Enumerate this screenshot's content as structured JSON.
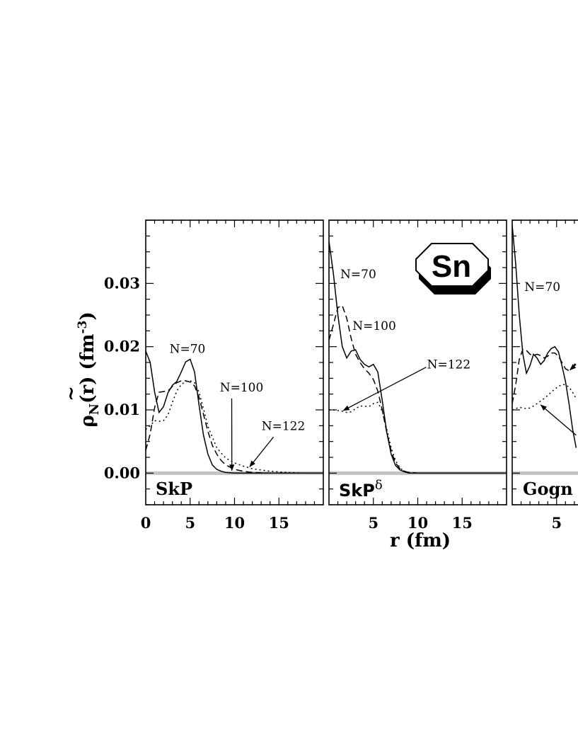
{
  "chart_data": {
    "type": "line",
    "ylabel": {
      "rho": "ρ",
      "sub": "N",
      "rest": "(r) (fm",
      "exp": "-3",
      "close": ")"
    },
    "xlabel": "r (fm)",
    "ylim": [
      -0.005,
      0.04
    ],
    "yticks": [
      {
        "value": 0.0,
        "label": "0.00"
      },
      {
        "value": 0.01,
        "label": "0.01"
      },
      {
        "value": 0.02,
        "label": "0.02"
      },
      {
        "value": 0.03,
        "label": "0.03"
      }
    ],
    "badge": "Sn",
    "panels": [
      {
        "label": "SkP",
        "label_sup": "",
        "xlim": [
          0,
          20
        ],
        "xticks": [
          {
            "value": 0,
            "label": "0"
          },
          {
            "value": 5,
            "label": "5"
          },
          {
            "value": 10,
            "label": "10"
          },
          {
            "value": 15,
            "label": "15"
          }
        ],
        "series": [
          {
            "name": "N=70",
            "style": "solid",
            "x": [
              0,
              0.5,
              1,
              1.5,
              2,
              2.5,
              3,
              3.5,
              4,
              4.5,
              5,
              5.5,
              6,
              6.5,
              7,
              7.5,
              8,
              8.5,
              9,
              10,
              11,
              12,
              14,
              16,
              20
            ],
            "y": [
              0.0193,
              0.0175,
              0.0128,
              0.0096,
              0.0105,
              0.0127,
              0.0139,
              0.0145,
              0.016,
              0.0176,
              0.018,
              0.016,
              0.0108,
              0.006,
              0.003,
              0.0013,
              0.0006,
              0.0003,
              0.0001,
              0.0,
              0.0,
              0.0,
              0.0,
              0.0,
              0.0
            ]
          },
          {
            "name": "N=100",
            "style": "dashed",
            "x": [
              0,
              0.5,
              1,
              1.5,
              2,
              2.5,
              3,
              3.5,
              4,
              4.5,
              5,
              5.5,
              6,
              6.5,
              7,
              7.5,
              8,
              8.5,
              9,
              10,
              11,
              12,
              14,
              16,
              20
            ],
            "y": [
              0.0036,
              0.0062,
              0.0104,
              0.0128,
              0.0129,
              0.013,
              0.0137,
              0.0143,
              0.0146,
              0.0146,
              0.0144,
              0.0138,
              0.012,
              0.0093,
              0.0066,
              0.0044,
              0.003,
              0.002,
              0.0013,
              0.0006,
              0.0003,
              0.0001,
              0.0,
              0.0,
              0.0
            ]
          },
          {
            "name": "N=122",
            "style": "dotted",
            "x": [
              0,
              0.5,
              1,
              1.5,
              2,
              2.5,
              3,
              3.5,
              4,
              4.5,
              5,
              5.5,
              6,
              6.5,
              7,
              8,
              9,
              10,
              11,
              12,
              13,
              14,
              16,
              18,
              20
            ],
            "y": [
              0.0069,
              0.0075,
              0.0083,
              0.0082,
              0.0083,
              0.0092,
              0.0112,
              0.013,
              0.014,
              0.0145,
              0.0146,
              0.0143,
              0.0128,
              0.0102,
              0.0074,
              0.004,
              0.0024,
              0.0016,
              0.0011,
              0.0007,
              0.0005,
              0.0003,
              0.0001,
              0.0,
              0.0
            ]
          }
        ],
        "annotations": [
          {
            "text": "N=70",
            "at": [
              4.7,
              0.0197
            ]
          },
          {
            "text": "N=100",
            "at": [
              10.8,
              0.0136
            ],
            "arrow_to": [
              9.7,
              0.0004
            ]
          },
          {
            "text": "N=122",
            "at": [
              15.5,
              0.0075
            ],
            "arrow_to": [
              11.7,
              0.001
            ]
          }
        ]
      },
      {
        "label": "SkP",
        "label_sup": "δ",
        "xlim": [
          0,
          20
        ],
        "xticks": [
          {
            "value": 5,
            "label": "5"
          },
          {
            "value": 10,
            "label": "10"
          },
          {
            "value": 15,
            "label": "15"
          }
        ],
        "series": [
          {
            "name": "N=70",
            "style": "solid",
            "x": [
              0,
              0.5,
              1,
              1.5,
              2,
              2.5,
              3,
              3.5,
              4,
              4.5,
              5,
              5.5,
              6,
              6.5,
              7,
              7.5,
              8,
              8.5,
              9,
              10,
              12,
              14,
              16,
              20
            ],
            "y": [
              0.0367,
              0.0315,
              0.025,
              0.02,
              0.0182,
              0.0193,
              0.0195,
              0.018,
              0.0172,
              0.0168,
              0.0172,
              0.016,
              0.0115,
              0.0065,
              0.003,
              0.0012,
              0.0005,
              0.0002,
              0.0,
              0.0,
              0.0,
              0.0,
              0.0,
              0.0
            ]
          },
          {
            "name": "N=100",
            "style": "dashed",
            "x": [
              0,
              0.5,
              1,
              1.5,
              2,
              2.5,
              3,
              3.5,
              4,
              4.5,
              5,
              5.5,
              6,
              6.5,
              7,
              7.5,
              8,
              8.5,
              9,
              10,
              12,
              14,
              16,
              20
            ],
            "y": [
              0.021,
              0.0235,
              0.0262,
              0.0265,
              0.0245,
              0.0213,
              0.0188,
              0.0175,
              0.0165,
              0.0158,
              0.0148,
              0.013,
              0.01,
              0.0065,
              0.0035,
              0.0016,
              0.0007,
              0.0003,
              0.0001,
              0.0,
              0.0,
              0.0,
              0.0,
              0.0
            ]
          },
          {
            "name": "N=122",
            "style": "dotted",
            "x": [
              0,
              0.5,
              1,
              1.5,
              2,
              2.5,
              3,
              3.5,
              4,
              4.5,
              5,
              5.5,
              6,
              6.5,
              7,
              7.5,
              8,
              8.5,
              9,
              10,
              12,
              14,
              16,
              20
            ],
            "y": [
              0.01,
              0.01,
              0.0099,
              0.0098,
              0.0096,
              0.0097,
              0.0102,
              0.0106,
              0.0106,
              0.0105,
              0.011,
              0.0112,
              0.0098,
              0.007,
              0.004,
              0.002,
              0.0008,
              0.0003,
              0.0001,
              0.0,
              0.0,
              0.0,
              0.0,
              0.0
            ]
          }
        ],
        "annotations": [
          {
            "text": "N=70",
            "at": [
              3.3,
              0.0315
            ]
          },
          {
            "text": "N=100",
            "at": [
              5.1,
              0.0233
            ]
          },
          {
            "text": "N=122",
            "at": [
              13.5,
              0.0172
            ],
            "arrow_to": [
              1.6,
              0.0099
            ]
          }
        ]
      },
      {
        "label": "Gogn",
        "label_sup": "",
        "xlim": [
          0,
          20
        ],
        "xticks": [
          {
            "value": 5,
            "label": "5"
          }
        ],
        "series": [
          {
            "name": "N=70",
            "style": "solid",
            "x": [
              0,
              0.4,
              0.8,
              1.2,
              1.6,
              2.0,
              2.4,
              2.8,
              3.2,
              3.6,
              4.0,
              4.4,
              4.8,
              5.2,
              5.6,
              6.0,
              6.4,
              6.8,
              7.2
            ],
            "y": [
              0.0392,
              0.033,
              0.025,
              0.0188,
              0.0158,
              0.017,
              0.0188,
              0.0182,
              0.0172,
              0.0178,
              0.019,
              0.0197,
              0.02,
              0.0192,
              0.017,
              0.0145,
              0.011,
              0.007,
              0.004
            ]
          },
          {
            "name": "N=100",
            "style": "dashed",
            "x": [
              0,
              0.4,
              0.8,
              1.2,
              1.6,
              2.0,
              2.4,
              2.8,
              3.2,
              3.6,
              4.0,
              4.4,
              4.8,
              5.2,
              5.6,
              6.0,
              6.4,
              6.8,
              7.2
            ],
            "y": [
              0.011,
              0.014,
              0.018,
              0.0196,
              0.0194,
              0.0188,
              0.0186,
              0.0188,
              0.0186,
              0.0182,
              0.0185,
              0.019,
              0.019,
              0.0185,
              0.0175,
              0.0165,
              0.0162,
              0.0168,
              0.0175
            ]
          },
          {
            "name": "N=122",
            "style": "dotted",
            "x": [
              0,
              0.4,
              0.8,
              1.2,
              1.6,
              2.0,
              2.4,
              2.8,
              3.2,
              3.6,
              4.0,
              4.4,
              4.8,
              5.2,
              5.6,
              6.0,
              6.4,
              6.8,
              7.2
            ],
            "y": [
              0.01,
              0.0102,
              0.0104,
              0.0103,
              0.0102,
              0.0103,
              0.0106,
              0.011,
              0.0114,
              0.0118,
              0.0123,
              0.0128,
              0.0133,
              0.0137,
              0.014,
              0.014,
              0.0136,
              0.0128,
              0.0118
            ]
          }
        ],
        "annotations": [
          {
            "text": "N=70",
            "at": [
              3.4,
              0.0295
            ]
          },
          {
            "arrow_from": [
              7.2,
              0.006
            ],
            "arrow_to": [
              3.2,
              0.0108
            ]
          },
          {
            "arrow_from": [
              7.2,
              0.0172
            ],
            "arrow_to": [
              6.5,
              0.0163
            ]
          }
        ]
      }
    ]
  }
}
